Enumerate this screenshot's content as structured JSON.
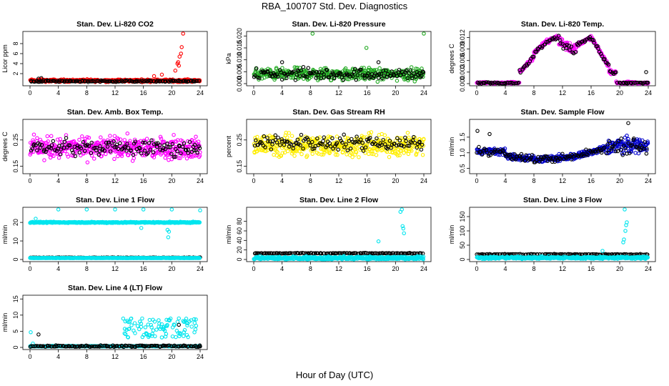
{
  "title": "RBA_100707  Std. Dev. Diagnostics",
  "xlabel": "Hour of Day (UTC)",
  "chart_data": [
    {
      "type": "scatter",
      "title": "Stan. Dev. Li-820 CO2",
      "xlabel": "",
      "ylabel": "Licor ppm",
      "xlim": [
        0,
        24
      ],
      "xticks": [
        0,
        4,
        8,
        12,
        16,
        20,
        24
      ],
      "ylim": [
        0,
        10
      ],
      "yticks": [
        2,
        4,
        6,
        8
      ],
      "series": [
        {
          "color": "#ff0000",
          "base": 0.6,
          "noise": 0.3,
          "spikes": [
            [
              17.5,
              1.5
            ],
            [
              18.6,
              1.8
            ],
            [
              20.5,
              2.6
            ],
            [
              20.8,
              4
            ],
            [
              20.9,
              4.3
            ],
            [
              21.0,
              3.6
            ],
            [
              21.1,
              5.4
            ],
            [
              21.3,
              6
            ],
            [
              21.4,
              7.3
            ],
            [
              21.6,
              10
            ]
          ]
        },
        {
          "color": "#000000",
          "base": 0.5,
          "noise": 0.2,
          "sparse": true,
          "spikes": [
            [
              1.2,
              1.0
            ],
            [
              1.6,
              1.1
            ]
          ]
        }
      ]
    },
    {
      "type": "scatter",
      "title": "Stan. Dev. Li-820 Pressure",
      "xlabel": "",
      "ylabel": "kPa",
      "xlim": [
        0,
        24
      ],
      "xticks": [
        0,
        4,
        8,
        12,
        16,
        20,
        24
      ],
      "ylim": [
        0,
        0.021
      ],
      "yticks": [
        0.0,
        0.005,
        0.01,
        0.015,
        0.02
      ],
      "series": [
        {
          "color": "#22aa22",
          "base": 0.004,
          "noise": 0.003,
          "spikes": [
            [
              8.3,
              0.021
            ],
            [
              15.9,
              0.015
            ],
            [
              24,
              0.021
            ]
          ]
        },
        {
          "color": "#000000",
          "base": 0.004,
          "noise": 0.003,
          "sparse": true,
          "spikes": [
            [
              4.0,
              0.009
            ],
            [
              17.6,
              0.009
            ]
          ]
        }
      ]
    },
    {
      "type": "scatter",
      "title": "Stan. Dev. Li-820 Temp.",
      "xlabel": "",
      "ylabel": "degrees C",
      "xlim": [
        0,
        24
      ],
      "xticks": [
        0,
        4,
        8,
        12,
        16,
        20,
        24
      ],
      "ylim": [
        0,
        0.013
      ],
      "yticks": [
        0.0,
        0.003,
        0.006,
        0.009,
        0.012
      ],
      "series": [
        {
          "color": "#ff00ff",
          "shape": "temp",
          "base": 0,
          "noise": 0
        },
        {
          "color": "#000000",
          "shape": "temp",
          "base": 0,
          "noise": 0,
          "sparse": true,
          "spikes": [
            [
              23.7,
              0.003
            ]
          ]
        }
      ]
    },
    {
      "type": "scatter",
      "title": "Stan. Dev. Amb. Box Temp.",
      "xlabel": "",
      "ylabel": "degrees C",
      "xlim": [
        0,
        24
      ],
      "xticks": [
        0,
        4,
        8,
        12,
        16,
        20,
        24
      ],
      "ylim": [
        0.13,
        0.32
      ],
      "yticks": [
        0.15,
        0.25
      ],
      "series": [
        {
          "color": "#ff00ff",
          "base": 0.22,
          "noise": 0.05
        },
        {
          "color": "#000000",
          "base": 0.22,
          "noise": 0.035,
          "sparse": true
        }
      ]
    },
    {
      "type": "scatter",
      "title": "Stan. Dev. Gas Stream RH",
      "xlabel": "",
      "ylabel": "percent",
      "xlim": [
        0,
        24
      ],
      "xticks": [
        0,
        4,
        8,
        12,
        16,
        20,
        24
      ],
      "ylim": [
        0.13,
        0.32
      ],
      "yticks": [
        0.15,
        0.25
      ],
      "series": [
        {
          "color": "#ffee00",
          "base": 0.23,
          "noise": 0.05
        },
        {
          "color": "#000000",
          "base": 0.24,
          "noise": 0.035,
          "sparse": true
        }
      ]
    },
    {
      "type": "scatter",
      "title": "Stan. Dev. Sample Flow",
      "xlabel": "",
      "ylabel": "ml/min",
      "xlim": [
        0,
        24
      ],
      "xticks": [
        0,
        4,
        8,
        12,
        16,
        20,
        24
      ],
      "ylim": [
        0.4,
        2.0
      ],
      "yticks": [
        0.5,
        1.0,
        1.5
      ],
      "series": [
        {
          "color": "#0000cc",
          "shape": "flow",
          "base": 1.0,
          "noise": 0.12
        },
        {
          "color": "#000000",
          "shape": "flow",
          "base": 1.0,
          "noise": 0.15,
          "sparse": true,
          "spikes": [
            [
              0.1,
              1.7
            ],
            [
              1.8,
              1.6
            ],
            [
              21.2,
              1.95
            ]
          ]
        }
      ]
    },
    {
      "type": "scatter",
      "title": "Stan. Dev. Line 1 Flow",
      "xlabel": "",
      "ylabel": "ml/min",
      "xlim": [
        0,
        24
      ],
      "xticks": [
        0,
        4,
        8,
        12,
        16,
        20,
        24
      ],
      "ylim": [
        0,
        27
      ],
      "yticks": [
        0,
        10,
        20
      ],
      "series": [
        {
          "color": "#00e5ee",
          "base": 20,
          "noise": 0.4,
          "spikes": [
            [
              0.8,
              22
            ],
            [
              4.0,
              27
            ],
            [
              8.0,
              27
            ],
            [
              12.0,
              27
            ],
            [
              16.0,
              27
            ],
            [
              20.0,
              27
            ],
            [
              24.0,
              26.5
            ],
            [
              15.7,
              17
            ],
            [
              19.5,
              12
            ],
            [
              19.6,
              15
            ],
            [
              19.4,
              16
            ]
          ]
        },
        {
          "color": "#000000",
          "base": 1,
          "noise": 0.2,
          "sparse": true
        },
        {
          "color": "#00e5ee",
          "base": 0.8,
          "noise": 0.1
        }
      ]
    },
    {
      "type": "scatter",
      "title": "Stan. Dev. Line 2 Flow",
      "xlabel": "",
      "ylabel": "ml/min",
      "xlim": [
        0,
        24
      ],
      "xticks": [
        0,
        4,
        8,
        12,
        16,
        20,
        24
      ],
      "ylim": [
        0,
        105
      ],
      "yticks": [
        0,
        20,
        40,
        60,
        80
      ],
      "series": [
        {
          "color": "#000000",
          "base": 13,
          "noise": 1,
          "sparse": true
        },
        {
          "color": "#00e5ee",
          "base": 3,
          "noise": 4,
          "spikes": [
            [
              17.6,
              38
            ],
            [
              20.7,
              100
            ],
            [
              20.9,
              105
            ],
            [
              21.0,
              70
            ],
            [
              21.1,
              65
            ],
            [
              21.2,
              55
            ]
          ]
        }
      ]
    },
    {
      "type": "scatter",
      "title": "Stan. Dev. Line 3 Flow",
      "xlabel": "",
      "ylabel": "ml/min",
      "xlim": [
        0,
        24
      ],
      "xticks": [
        0,
        4,
        8,
        12,
        16,
        20,
        24
      ],
      "ylim": [
        0,
        175
      ],
      "yticks": [
        0,
        50,
        100,
        150
      ],
      "series": [
        {
          "color": "#000000",
          "base": 18,
          "noise": 2,
          "sparse": true
        },
        {
          "color": "#00e5ee",
          "base": 6,
          "noise": 5,
          "spikes": [
            [
              17.6,
              30
            ],
            [
              20.5,
              60
            ],
            [
              20.6,
              70
            ],
            [
              20.8,
              100
            ],
            [
              20.9,
              120
            ],
            [
              21.0,
              130
            ],
            [
              20.7,
              175
            ]
          ]
        }
      ]
    },
    {
      "type": "scatter",
      "title": "Stan. Dev. Line 4 (LT) Flow",
      "xlabel": "",
      "ylabel": "ml/min",
      "xlim": [
        0,
        24
      ],
      "xticks": [
        0,
        4,
        8,
        12,
        16,
        20,
        24
      ],
      "ylim": [
        0,
        15.5
      ],
      "yticks": [
        0,
        5,
        10,
        15
      ],
      "series": [
        {
          "color": "#00e5ee",
          "shape": "line4",
          "base": 0.3,
          "noise": 0.2,
          "spikes": [
            [
              0.1,
              4.7
            ],
            [
              0.4,
              1.2
            ]
          ]
        },
        {
          "color": "#000000",
          "base": 0.4,
          "noise": 0.3,
          "sparse": true,
          "spikes": [
            [
              1.2,
              4.0
            ],
            [
              21.0,
              7.0
            ],
            [
              24.0,
              0.3
            ]
          ]
        }
      ]
    }
  ]
}
